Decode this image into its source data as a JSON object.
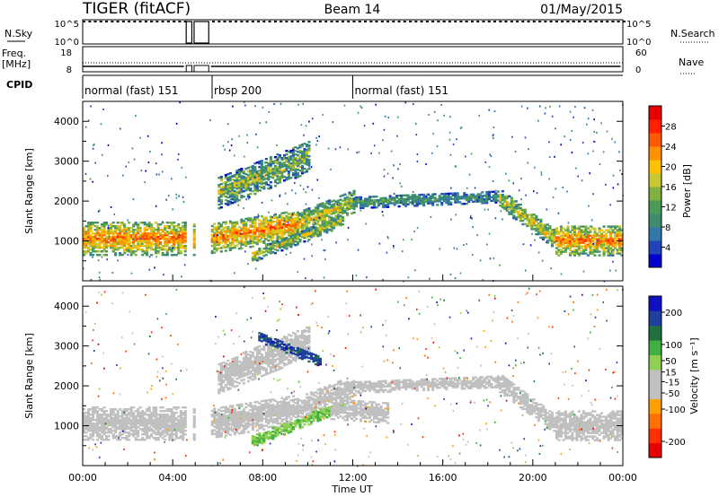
{
  "header": {
    "radar": "TIGER (fitACF)",
    "beam": "Beam 14",
    "date": "01/May/2015"
  },
  "strips": {
    "nsky_label": "N.Sky",
    "nsearch_label": "N.Search",
    "nsky_ticks": [
      "10^5",
      "10^0"
    ],
    "nsearch_ticks": [
      "10^5",
      "10^0"
    ],
    "freq_label_1": "Freq.",
    "freq_label_2": "[MHz]",
    "freq_ticks": [
      "18",
      "8"
    ],
    "nave_label": "Nave",
    "nave_ticks": [
      "60",
      "0"
    ],
    "cpid_label": "CPID",
    "cpid_segments": [
      {
        "label": "normal (fast) 151",
        "start": 0.0,
        "end": 5.75
      },
      {
        "label": "rbsp 200",
        "start": 5.75,
        "end": 12.0
      },
      {
        "label": "normal (fast) 151",
        "start": 12.0,
        "end": 24.0
      }
    ],
    "data_gaps_hours": [
      [
        4.6,
        4.85
      ],
      [
        4.95,
        5.6
      ]
    ]
  },
  "chart_data": [
    {
      "type": "heatmap",
      "panel": "power",
      "xlabel": "",
      "ylabel": "Slant Range [km]",
      "xlim": [
        0,
        24
      ],
      "ylim": [
        0,
        4500
      ],
      "y_ticks": [
        1000,
        2000,
        3000,
        4000
      ],
      "colorbar": {
        "label": "Power [dB]",
        "range": [
          0,
          32
        ],
        "ticks": [
          4,
          8,
          12,
          16,
          20,
          24,
          28
        ],
        "tick_labels": [
          "4",
          "8",
          "12",
          "16",
          "20",
          "24",
          "28"
        ],
        "colors": [
          "#0000cc",
          "#2244bb",
          "#3377aa",
          "#3e8e6e",
          "#4a9a58",
          "#7fb040",
          "#c8c830",
          "#ffc000",
          "#ff9000",
          "#ff5a00",
          "#ff2000",
          "#e60000"
        ]
      },
      "bands": [
        {
          "name": "main",
          "t0": 0.0,
          "t1": 5.3,
          "center": [
            1050,
            1050
          ],
          "halfwidth": 420,
          "intensity": [
            24,
            24
          ],
          "spread": 5
        },
        {
          "name": "main",
          "t0": 5.6,
          "t1": 9.5,
          "center": [
            1050,
            1400
          ],
          "halfwidth": 380,
          "intensity": [
            24,
            24
          ],
          "spread": 5
        },
        {
          "name": "rise",
          "t0": 9.5,
          "t1": 12.0,
          "center": [
            1400,
            1950
          ],
          "halfwidth": 300,
          "intensity": [
            20,
            17
          ],
          "spread": 5
        },
        {
          "name": "arc",
          "t0": 12.0,
          "t1": 18.5,
          "center": [
            1950,
            2100
          ],
          "halfwidth": 150,
          "intensity": [
            12,
            10
          ],
          "spread": 4
        },
        {
          "name": "descend",
          "t0": 18.5,
          "t1": 21.0,
          "center": [
            2050,
            1000
          ],
          "halfwidth": 230,
          "intensity": [
            18,
            20
          ],
          "spread": 5
        },
        {
          "name": "late",
          "t0": 21.0,
          "t1": 24.0,
          "center": [
            1000,
            1000
          ],
          "halfwidth": 380,
          "intensity": [
            24,
            24
          ],
          "spread": 5
        },
        {
          "name": "lower_branch",
          "t0": 7.5,
          "t1": 11.5,
          "center": [
            600,
            1500
          ],
          "halfwidth": 150,
          "intensity": [
            18,
            16
          ],
          "spread": 6
        },
        {
          "name": "upper_patch",
          "t0": 6.0,
          "t1": 10.0,
          "center": [
            2200,
            3100
          ],
          "halfwidth": 400,
          "intensity": [
            16,
            14
          ],
          "spread": 7
        }
      ]
    },
    {
      "type": "heatmap",
      "panel": "velocity",
      "xlabel": "Time UT",
      "ylabel": "Slant Range [km]",
      "xlim": [
        0,
        24
      ],
      "ylim": [
        0,
        4500
      ],
      "y_ticks": [
        1000,
        2000,
        3000,
        4000
      ],
      "x_tick_labels": [
        "00:00",
        "04:00",
        "08:00",
        "12:00",
        "16:00",
        "20:00",
        "00:00"
      ],
      "x_ticks": [
        0,
        4,
        8,
        12,
        16,
        20,
        24
      ],
      "colorbar": {
        "label": "Velocity [m s⁻¹]",
        "range": [
          -250,
          250
        ],
        "ticks": [
          -200,
          -100,
          -50,
          -15,
          15,
          50,
          100,
          200
        ],
        "tick_labels": [
          "-200",
          "-100",
          "-50",
          "-15",
          "15",
          "50",
          "100",
          "200"
        ],
        "colors": [
          "#e60000",
          "#ff3000",
          "#ff7000",
          "#ffa000",
          "#c0c0c0",
          "#c0c0c0",
          "#90d050",
          "#40b040",
          "#207040",
          "#2040a0",
          "#1010c0"
        ]
      },
      "bands": [
        {
          "name": "ground",
          "t0": 0.0,
          "t1": 5.3,
          "center": [
            1050,
            1050
          ],
          "halfwidth": 420,
          "velocity": 0
        },
        {
          "name": "ground",
          "t0": 5.6,
          "t1": 9.5,
          "center": [
            1050,
            1400
          ],
          "halfwidth": 380,
          "velocity": 0
        },
        {
          "name": "ground",
          "t0": 9.5,
          "t1": 12.0,
          "center": [
            1400,
            1950
          ],
          "halfwidth": 300,
          "velocity": 0
        },
        {
          "name": "ground",
          "t0": 12.0,
          "t1": 18.5,
          "center": [
            1950,
            2100
          ],
          "halfwidth": 150,
          "velocity": 0
        },
        {
          "name": "ground",
          "t0": 18.5,
          "t1": 21.0,
          "center": [
            2050,
            1000
          ],
          "halfwidth": 230,
          "velocity": 0
        },
        {
          "name": "ground",
          "t0": 21.0,
          "t1": 24.0,
          "center": [
            1000,
            1000
          ],
          "halfwidth": 380,
          "velocity": 0
        },
        {
          "name": "green_branch",
          "t0": 7.5,
          "t1": 11.5,
          "center": [
            600,
            1500
          ],
          "halfwidth": 150,
          "velocity": 60
        },
        {
          "name": "orange_patch",
          "t0": 11.0,
          "t1": 13.5,
          "center": [
            1400,
            1300
          ],
          "halfwidth": 250,
          "velocity": -40
        },
        {
          "name": "mixed_upper",
          "t0": 6.0,
          "t1": 10.0,
          "center": [
            2200,
            3100
          ],
          "halfwidth": 400,
          "velocity": -30
        },
        {
          "name": "blue_streak",
          "t0": 7.8,
          "t1": 10.5,
          "center": [
            3200,
            2600
          ],
          "halfwidth": 120,
          "velocity": 180
        }
      ]
    }
  ]
}
